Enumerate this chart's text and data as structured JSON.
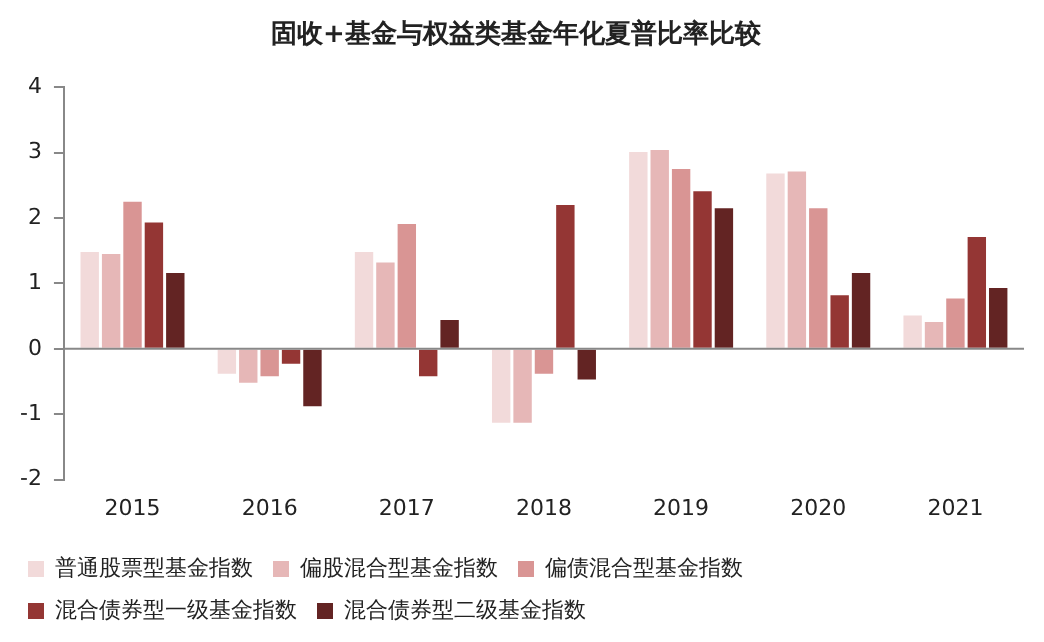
{
  "chart_data": {
    "type": "bar",
    "title": "固收+基金与权益类基金年化夏普比率比较",
    "categories": [
      "2015",
      "2016",
      "2017",
      "2018",
      "2019",
      "2020",
      "2021"
    ],
    "series": [
      {
        "name": "普通股票型基金指数",
        "color": "#f2dada",
        "values": [
          1.48,
          -0.38,
          1.48,
          -1.13,
          3.01,
          2.68,
          0.51
        ]
      },
      {
        "name": "偏股混合型基金指数",
        "color": "#e6b7b7",
        "values": [
          1.45,
          -0.52,
          1.32,
          -1.13,
          3.04,
          2.71,
          0.41
        ]
      },
      {
        "name": "偏债混合型基金指数",
        "color": "#d99594",
        "values": [
          2.25,
          -0.42,
          1.91,
          -0.38,
          2.75,
          2.15,
          0.77
        ]
      },
      {
        "name": "混合债券型一级基金指数",
        "color": "#943634",
        "values": [
          1.93,
          -0.23,
          -0.42,
          2.2,
          2.41,
          0.82,
          1.71
        ]
      },
      {
        "name": "混合债券型二级基金指数",
        "color": "#632423",
        "values": [
          1.16,
          -0.88,
          0.44,
          -0.47,
          2.15,
          1.16,
          0.93
        ]
      }
    ],
    "ylim": [
      -2,
      4
    ],
    "yticks": [
      -2,
      -1,
      0,
      1,
      2,
      3,
      4
    ],
    "ref_lines": [
      {
        "axis": "y",
        "value": 0,
        "color": "#888888"
      }
    ],
    "legend": "bottom"
  }
}
